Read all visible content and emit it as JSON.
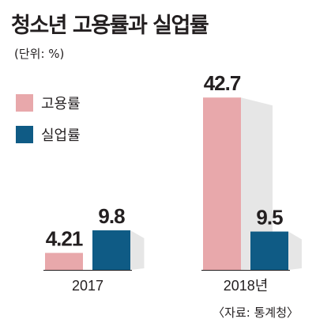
{
  "title": "청소년 고용률과 실업률",
  "unit": "(단위: %)",
  "source": "〈자료: 통계청〉",
  "colors": {
    "employment": "#e8a8ab",
    "unemployment": "#0f5b85",
    "shadow": "#e0e0e0",
    "baseline": "#231f20",
    "text": "#231f20"
  },
  "chart_data": {
    "type": "bar",
    "title": "청소년 고용률과 실업률",
    "categories": [
      "2017",
      "2018년"
    ],
    "series": [
      {
        "name": "고용률",
        "values": [
          4.21,
          42.7
        ],
        "labels": [
          "4.21",
          "42.7"
        ]
      },
      {
        "name": "실업률",
        "values": [
          9.8,
          9.5
        ],
        "labels": [
          "9.8",
          "9.5"
        ]
      }
    ],
    "xlabel": "",
    "ylabel": "",
    "grid": false,
    "legend": "top-left"
  }
}
